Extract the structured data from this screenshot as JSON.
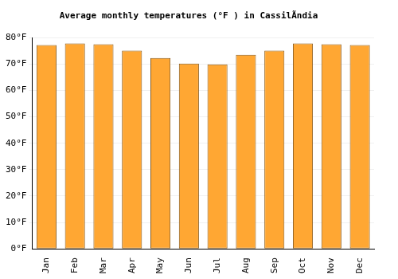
{
  "chart_data": {
    "type": "bar",
    "title": "Average monthly temperatures (°F ) in CassilÃndia",
    "categories": [
      "Jan",
      "Feb",
      "Mar",
      "Apr",
      "May",
      "Jun",
      "Jul",
      "Aug",
      "Sep",
      "Oct",
      "Nov",
      "Dec"
    ],
    "values": [
      77.2,
      77.8,
      77.5,
      75.1,
      72.3,
      70.2,
      69.9,
      73.5,
      75.1,
      77.8,
      77.5,
      77.2
    ],
    "color": "#ffa733",
    "ylim": [
      0,
      80
    ],
    "yticks": [
      {
        "value": 0,
        "label": "0°F"
      },
      {
        "value": 10,
        "label": "10°F"
      },
      {
        "value": 20,
        "label": "20°F"
      },
      {
        "value": 30,
        "label": "30°F"
      },
      {
        "value": 40,
        "label": "40°F"
      },
      {
        "value": 50,
        "label": "50°F"
      },
      {
        "value": 60,
        "label": "60°F"
      },
      {
        "value": 70,
        "label": "70°F"
      },
      {
        "value": 80,
        "label": "80°F"
      }
    ],
    "grid": true
  }
}
